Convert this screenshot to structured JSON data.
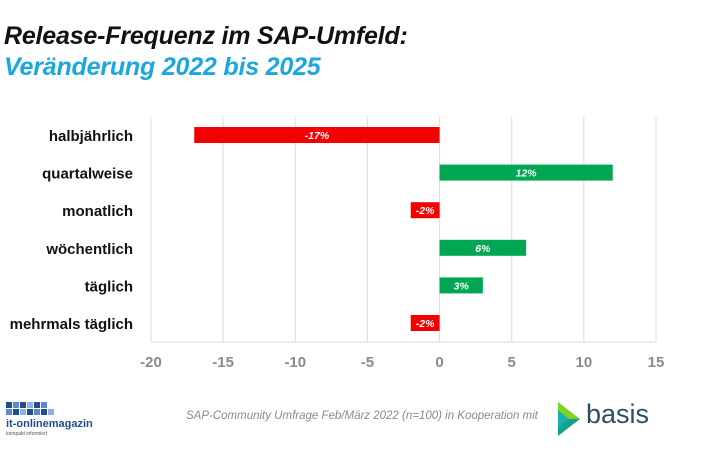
{
  "chart_data": {
    "type": "bar",
    "orientation": "horizontal",
    "title": "Release-Frequenz im SAP-Umfeld:",
    "subtitle": "Veränderung 2022 bis 2025",
    "categories": [
      "halbjährlich",
      "quartalweise",
      "monatlich",
      "wöchentlich",
      "täglich",
      "mehrmals täglich"
    ],
    "values": [
      -17,
      12,
      -2,
      6,
      3,
      -2
    ],
    "data_labels": [
      "-17%",
      "12%",
      "-2%",
      "6%",
      "3%",
      "-2%"
    ],
    "xlim": [
      -20,
      15
    ],
    "xticks": [
      -20,
      -15,
      -10,
      -5,
      0,
      5,
      10,
      15
    ],
    "grid": true,
    "colors": {
      "negative": "#f40000",
      "positive": "#00a651"
    }
  },
  "footer": {
    "source": "SAP-Community Umfrage Feb/März 2022 (n=100) in Kooperation mit"
  },
  "logos": {
    "left_name": "it-onlinemagazin",
    "left_tagline": "kompakt informiert",
    "right_name": "basis"
  },
  "colors": {
    "title": "#111111",
    "subtitle": "#1aa7e0",
    "axis_text": "#8a8a8a",
    "grid": "#dcdcdc"
  }
}
